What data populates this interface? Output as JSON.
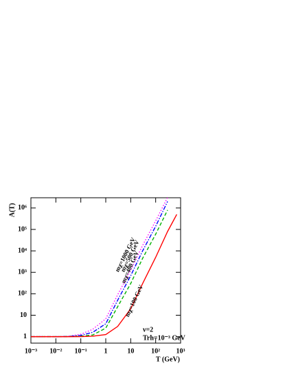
{
  "chart_data": {
    "type": "line",
    "ylabel": "A(T)",
    "xlabel": "T (GeV)",
    "annotations": [
      "ν=2",
      "Trh=10⁻³ GeV"
    ],
    "xscale": "log",
    "yscale": "log",
    "xlim": [
      0.001,
      1000
    ],
    "ylim": [
      0.5,
      3000000
    ],
    "xticks": [
      {
        "value": 0.001,
        "label": "10⁻³"
      },
      {
        "value": 0.01,
        "label": "10⁻²"
      },
      {
        "value": 0.1,
        "label": "10⁻¹"
      },
      1,
      10,
      {
        "value": 100,
        "label": "10²"
      },
      {
        "value": 1000,
        "label": "10³"
      }
    ],
    "yticks": [
      1,
      10,
      {
        "value": 100,
        "label": "10²"
      },
      {
        "value": 1000,
        "label": "10³"
      },
      {
        "value": 10000,
        "label": "10⁴"
      },
      {
        "value": 100000,
        "label": "10⁵"
      },
      {
        "value": 1000000,
        "label": "10⁶"
      }
    ],
    "series": [
      {
        "name": "mχ=1000 GeV",
        "color": "#ff00ff",
        "dash": "1.5 2.5",
        "x": [
          0.001,
          0.01,
          0.03,
          0.1,
          0.3,
          1,
          3,
          10,
          30,
          100,
          300
        ],
        "values": [
          1,
          1,
          1.03,
          1.3,
          2.2,
          6.8,
          90,
          1260,
          18000,
          250000,
          3100000
        ]
      },
      {
        "name": "mχ=500 GeV",
        "color": "#0000ff",
        "dash": "6 2 1.5 2",
        "x": [
          0.001,
          0.01,
          0.03,
          0.1,
          0.3,
          1,
          3,
          10,
          30,
          100,
          300
        ],
        "values": [
          1,
          1,
          1.02,
          1.15,
          1.6,
          4,
          50,
          700,
          10000,
          140000,
          2000000
        ]
      },
      {
        "name": "mχ=400 GeV",
        "color": "#00b000",
        "dash": "5 3",
        "x": [
          0.001,
          0.01,
          0.03,
          0.1,
          0.3,
          1,
          3,
          10,
          30,
          100,
          300
        ],
        "values": [
          1,
          1,
          1.01,
          1.05,
          1.2,
          2.5,
          25,
          300,
          4500,
          60000,
          800000
        ]
      },
      {
        "name": "mχ=100 GeV",
        "color": "#ff0000",
        "dash": "",
        "x": [
          0.001,
          0.01,
          0.03,
          0.1,
          0.3,
          1,
          3,
          10,
          30,
          100,
          300,
          700
        ],
        "values": [
          1,
          1,
          1,
          1.01,
          1.05,
          1.25,
          3,
          20,
          300,
          5000,
          80000,
          500000
        ]
      }
    ]
  }
}
